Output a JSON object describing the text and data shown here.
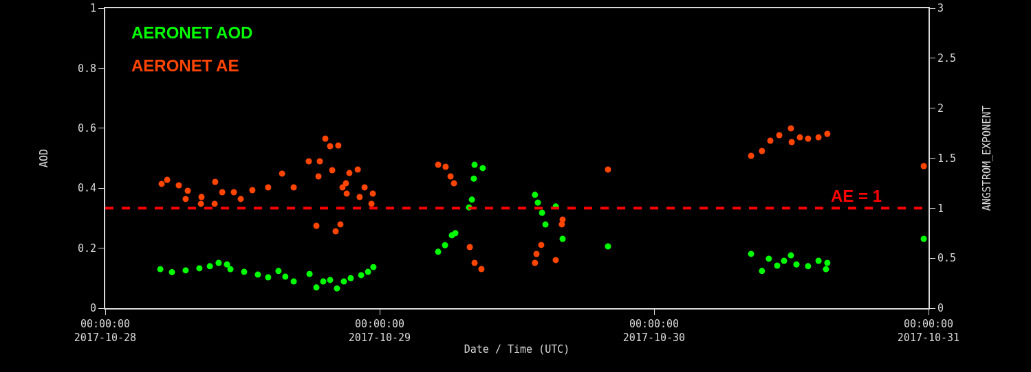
{
  "chart_data": {
    "type": "scatter",
    "xlabel": "Date / Time (UTC)",
    "ylabel": "AOD",
    "y2label": "ANGSTROM_EXPONENT",
    "xlim": [
      "2017-10-28T00:00",
      "2017-10-31T00:00"
    ],
    "xticks": [
      {
        "value": "2017-10-28T00:00",
        "label": "00:00:00\n2017-10-28"
      },
      {
        "value": "2017-10-29T00:00",
        "label": "00:00:00\n2017-10-29"
      },
      {
        "value": "2017-10-30T00:00",
        "label": "00:00:00\n2017-10-30"
      },
      {
        "value": "2017-10-31T00:00",
        "label": "00:00:00\n2017-10-31"
      }
    ],
    "ylim": [
      0,
      1
    ],
    "yticks": [
      0,
      0.2,
      0.4,
      0.6,
      0.8,
      1
    ],
    "y2lim": [
      0,
      3
    ],
    "y2ticks": [
      0,
      0.5,
      1,
      1.5,
      2,
      2.5,
      3
    ],
    "grid": false,
    "legend": false,
    "marker": "circle",
    "series": [
      {
        "name": "AERONET AOD",
        "color": "#00ff00",
        "x": [
          "2017-10-28T04:49",
          "2017-10-28T05:50",
          "2017-10-28T07:02",
          "2017-10-28T08:14",
          "2017-10-28T09:09",
          "2017-10-28T09:55",
          "2017-10-28T10:39",
          "2017-10-28T10:57",
          "2017-10-28T12:09",
          "2017-10-28T13:21",
          "2017-10-28T14:15",
          "2017-10-28T15:09",
          "2017-10-28T15:45",
          "2017-10-28T16:29",
          "2017-10-28T17:52",
          "2017-10-28T18:28",
          "2017-10-28T19:04",
          "2017-10-28T19:40",
          "2017-10-28T20:16",
          "2017-10-28T20:52",
          "2017-10-28T21:28",
          "2017-10-28T22:23",
          "2017-10-28T22:59",
          "2017-10-28T23:27",
          "2017-10-29T05:07",
          "2017-10-29T05:43",
          "2017-10-29T06:19",
          "2017-10-29T06:37",
          "2017-10-29T07:49",
          "2017-10-29T08:04",
          "2017-10-29T08:14",
          "2017-10-29T08:18",
          "2017-10-29T09:01",
          "2017-10-29T13:35",
          "2017-10-29T13:50",
          "2017-10-29T14:12",
          "2017-10-29T14:30",
          "2017-10-29T15:24",
          "2017-10-29T16:00",
          "2017-10-29T19:58",
          "2017-10-30T08:29",
          "2017-10-30T09:26",
          "2017-10-30T10:02",
          "2017-10-30T10:46",
          "2017-10-30T11:22",
          "2017-10-30T11:58",
          "2017-10-30T12:27",
          "2017-10-30T13:28",
          "2017-10-30T14:23",
          "2017-10-30T15:02",
          "2017-10-30T15:09",
          "2017-10-30T23:35"
        ],
        "values": [
          0.13,
          0.12,
          0.126,
          0.133,
          0.14,
          0.151,
          0.146,
          0.13,
          0.121,
          0.112,
          0.103,
          0.124,
          0.105,
          0.089,
          0.114,
          0.069,
          0.089,
          0.094,
          0.066,
          0.089,
          0.1,
          0.11,
          0.121,
          0.137,
          0.188,
          0.21,
          0.243,
          0.25,
          0.336,
          0.362,
          0.432,
          0.478,
          0.467,
          0.378,
          0.352,
          0.318,
          0.279,
          0.339,
          0.231,
          0.206,
          0.181,
          0.124,
          0.165,
          0.142,
          0.158,
          0.176,
          0.146,
          0.14,
          0.158,
          0.13,
          0.151,
          0.231
        ]
      },
      {
        "name": "AERONET AE",
        "color": "#ff4500",
        "axis": "y2",
        "x": [
          "2017-10-28T04:56",
          "2017-10-28T05:25",
          "2017-10-28T06:26",
          "2017-10-28T07:02",
          "2017-10-28T07:13",
          "2017-10-28T08:22",
          "2017-10-28T08:25",
          "2017-10-28T09:34",
          "2017-10-28T09:37",
          "2017-10-28T10:14",
          "2017-10-28T11:15",
          "2017-10-28T11:51",
          "2017-10-28T12:52",
          "2017-10-28T14:15",
          "2017-10-28T15:28",
          "2017-10-28T16:29",
          "2017-10-28T17:48",
          "2017-10-28T18:28",
          "2017-10-28T18:39",
          "2017-10-28T18:46",
          "2017-10-28T19:15",
          "2017-10-28T19:40",
          "2017-10-28T19:51",
          "2017-10-28T20:09",
          "2017-10-28T20:23",
          "2017-10-28T20:34",
          "2017-10-28T20:45",
          "2017-10-28T21:03",
          "2017-10-28T21:07",
          "2017-10-28T21:21",
          "2017-10-28T22:05",
          "2017-10-28T22:15",
          "2017-10-28T22:41",
          "2017-10-28T23:17",
          "2017-10-28T23:24",
          "2017-10-29T05:07",
          "2017-10-29T05:46",
          "2017-10-29T06:12",
          "2017-10-29T06:30",
          "2017-10-29T07:53",
          "2017-10-29T08:18",
          "2017-10-29T08:54",
          "2017-10-29T13:35",
          "2017-10-29T13:43",
          "2017-10-29T14:08",
          "2017-10-29T15:24",
          "2017-10-29T15:56",
          "2017-10-29T16:00",
          "2017-10-29T19:58",
          "2017-10-30T08:29",
          "2017-10-30T09:26",
          "2017-10-30T10:10",
          "2017-10-30T10:57",
          "2017-10-30T11:58",
          "2017-10-30T12:02",
          "2017-10-30T12:45",
          "2017-10-30T13:28",
          "2017-10-30T14:23",
          "2017-10-30T15:09",
          "2017-10-30T23:35"
        ],
        "values": [
          1.243,
          1.284,
          1.229,
          1.092,
          1.174,
          1.044,
          1.112,
          1.044,
          1.263,
          1.16,
          1.16,
          1.092,
          1.181,
          1.208,
          1.346,
          1.208,
          1.469,
          0.824,
          1.318,
          1.469,
          1.696,
          1.62,
          1.38,
          0.769,
          1.627,
          0.838,
          1.208,
          1.249,
          1.146,
          1.352,
          1.387,
          1.112,
          1.208,
          1.044,
          1.146,
          1.435,
          1.414,
          1.318,
          1.249,
          0.611,
          0.453,
          0.391,
          0.453,
          0.542,
          0.632,
          0.481,
          0.838,
          0.886,
          1.387,
          1.524,
          1.572,
          1.675,
          1.73,
          1.799,
          1.661,
          1.709,
          1.696,
          1.709,
          1.744,
          1.421
        ]
      }
    ],
    "ref_lines": [
      {
        "axis": "y2",
        "value": 1,
        "label": "AE = 1",
        "color": "#ff0000",
        "line_style": "dashed"
      }
    ]
  }
}
